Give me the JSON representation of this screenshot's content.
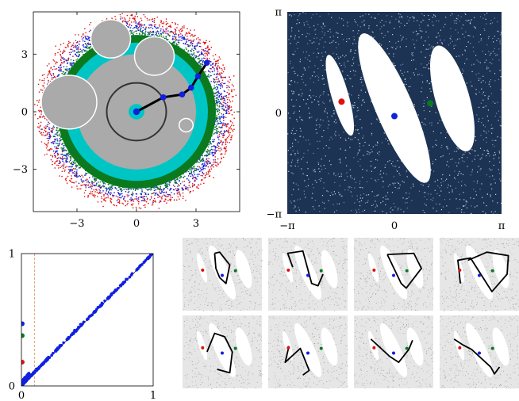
{
  "colors": {
    "gray_disk": "#aaaaaa",
    "dark_circle": "#333333",
    "cyan": "#00c5c5",
    "green": "#0b7a1f",
    "blue": "#1020e0",
    "red": "#e01010",
    "navy": "#1d3354",
    "pairs_orange": "#e8a070"
  },
  "chart_data": [
    {
      "type": "scatter",
      "name_id": "polar-scatter",
      "xlim": [
        -5.2,
        5.2
      ],
      "ylim": [
        -5.2,
        5.2
      ],
      "x_ticks": [
        {
          "v": -3,
          "label": "−3"
        },
        {
          "v": 0,
          "label": "0"
        },
        {
          "v": 3,
          "label": "3"
        }
      ],
      "y_ticks": [
        {
          "v": 3,
          "label": "3"
        },
        {
          "v": 0,
          "label": "0"
        },
        {
          "v": -3,
          "label": "−3"
        }
      ],
      "center_gray_radius": 3.0,
      "dark_circle_radius": 1.5,
      "cyan_core_radius": 0.4,
      "cyan_ring": [
        3.0,
        3.6
      ],
      "green_ring": [
        3.6,
        4.0
      ],
      "scatter_bands": [
        [
          3.6,
          4.1
        ],
        [
          3.9,
          4.5
        ],
        [
          4.2,
          4.9
        ]
      ],
      "scatter_colors": [
        "green",
        "blue",
        "red"
      ],
      "obstacles": [
        {
          "cx": -1.3,
          "cy": 3.8,
          "r": 1.0
        },
        {
          "cx": 0.9,
          "cy": 2.9,
          "r": 1.0
        },
        {
          "cx": -3.4,
          "cy": 0.5,
          "r": 1.4
        },
        {
          "cx": 2.5,
          "cy": -0.7,
          "r": 0.35
        }
      ],
      "chain": [
        [
          0,
          0
        ],
        [
          1.35,
          0.75
        ],
        [
          2.3,
          0.9
        ],
        [
          2.75,
          1.25
        ],
        [
          3.1,
          1.85
        ],
        [
          3.55,
          2.55
        ]
      ]
    },
    {
      "type": "scatter",
      "name_id": "torus-density",
      "xlim": [
        -3.1416,
        3.1416
      ],
      "ylim": [
        -3.1416,
        3.1416
      ],
      "x_ticks": [
        {
          "v": -3.1416,
          "label": "−π"
        },
        {
          "v": 0,
          "label": "0"
        },
        {
          "v": 3.1416,
          "label": "π"
        }
      ],
      "y_ticks": [
        {
          "v": 3.1416,
          "label": "π"
        },
        {
          "v": 0,
          "label": "0"
        },
        {
          "v": -3.1416,
          "label": "−π"
        }
      ],
      "voids": [
        {
          "cx": -1.6,
          "cy": 0.55,
          "rx": 0.25,
          "ry": 1.3,
          "angle": 15
        },
        {
          "cx": 0.0,
          "cy": 0.15,
          "rx": 0.55,
          "ry": 2.5,
          "angle": 22
        },
        {
          "cx": 1.7,
          "cy": 0.45,
          "rx": 0.5,
          "ry": 1.7,
          "angle": 15
        }
      ],
      "points": [
        {
          "x": -1.55,
          "y": 0.35,
          "color": "red"
        },
        {
          "x": 0.0,
          "y": -0.1,
          "color": "blue"
        },
        {
          "x": 1.05,
          "y": 0.3,
          "color": "green"
        }
      ]
    },
    {
      "type": "scatter",
      "name_id": "persistence-diagram",
      "xlim": [
        0,
        1
      ],
      "ylim": [
        0,
        1
      ],
      "x_ticks": [
        {
          "v": 0,
          "label": "0"
        },
        {
          "v": 1,
          "label": "1"
        }
      ],
      "y_ticks": [
        {
          "v": 1,
          "label": "1"
        },
        {
          "v": 0,
          "label": "0"
        }
      ],
      "threshold_x": 0.1,
      "points": [
        {
          "x": 0.0,
          "y": 0.47,
          "color": "blue"
        },
        {
          "x": 0.0,
          "y": 0.38,
          "color": "green"
        },
        {
          "x": 0.0,
          "y": 0.18,
          "color": "red"
        }
      ]
    },
    {
      "type": "scatter",
      "name_id": "loop-grid",
      "rows": 2,
      "cols": 4,
      "voids": [
        {
          "cx": -1.6,
          "cy": 0.55,
          "rx": 0.25,
          "ry": 1.3,
          "angle": 15
        },
        {
          "cx": 0.0,
          "cy": 0.15,
          "rx": 0.55,
          "ry": 2.5,
          "angle": 22
        },
        {
          "cx": 1.7,
          "cy": 0.45,
          "rx": 0.5,
          "ry": 1.7,
          "angle": 15
        }
      ],
      "points": [
        {
          "x": -1.55,
          "y": 0.35,
          "color": "red"
        },
        {
          "x": 0.0,
          "y": -0.1,
          "color": "blue"
        },
        {
          "x": 1.05,
          "y": 0.3,
          "color": "green"
        }
      ],
      "loops": [
        [
          [
            -0.6,
            1.8
          ],
          [
            -0.5,
            0.5
          ],
          [
            -0.2,
            -0.3
          ],
          [
            0.3,
            -0.8
          ],
          [
            0.6,
            0.8
          ],
          [
            -0.2,
            1.9
          ],
          [
            -0.6,
            1.8
          ]
        ],
        [
          [
            -1.2,
            0.6
          ],
          [
            -1.6,
            1.8
          ],
          [
            -0.4,
            2.0
          ],
          [
            0.3,
            -0.8
          ],
          [
            0.8,
            -1.0
          ],
          [
            1.2,
            0.0
          ]
        ],
        [
          [
            -0.5,
            1.7
          ],
          [
            1.6,
            1.8
          ],
          [
            2.2,
            0.5
          ],
          [
            1.0,
            -1.2
          ],
          [
            0.6,
            -0.8
          ],
          [
            -0.5,
            1.7
          ]
        ],
        [
          [
            -0.9,
            1.2
          ],
          [
            0.6,
            1.9
          ],
          [
            2.3,
            1.6
          ],
          [
            2.2,
            0.0
          ],
          [
            1.0,
            -1.5
          ],
          [
            -0.7,
            1.4
          ],
          [
            -1.7,
            1.2
          ],
          [
            -1.5,
            -0.8
          ]
        ],
        [
          [
            -1.2,
            0.0
          ],
          [
            -0.6,
            1.6
          ],
          [
            0.2,
            1.3
          ],
          [
            0.8,
            0.0
          ],
          [
            0.6,
            -1.8
          ],
          [
            -0.4,
            -1.5
          ]
        ],
        [
          [
            -1.5,
            0.5
          ],
          [
            -1.8,
            -0.9
          ],
          [
            -0.6,
            0.3
          ],
          [
            0.1,
            -1.6
          ],
          [
            -0.4,
            -2.0
          ]
        ],
        [
          [
            -1.8,
            1.1
          ],
          [
            -0.3,
            -0.4
          ],
          [
            0.4,
            -0.9
          ],
          [
            1.2,
            0.2
          ],
          [
            1.5,
            1.0
          ]
        ],
        [
          [
            -2.0,
            1.1
          ],
          [
            -1.3,
            0.6
          ],
          [
            -0.6,
            0.2
          ],
          [
            0.9,
            -1.3
          ],
          [
            1.2,
            -1.9
          ],
          [
            1.6,
            -1.3
          ]
        ]
      ]
    }
  ]
}
